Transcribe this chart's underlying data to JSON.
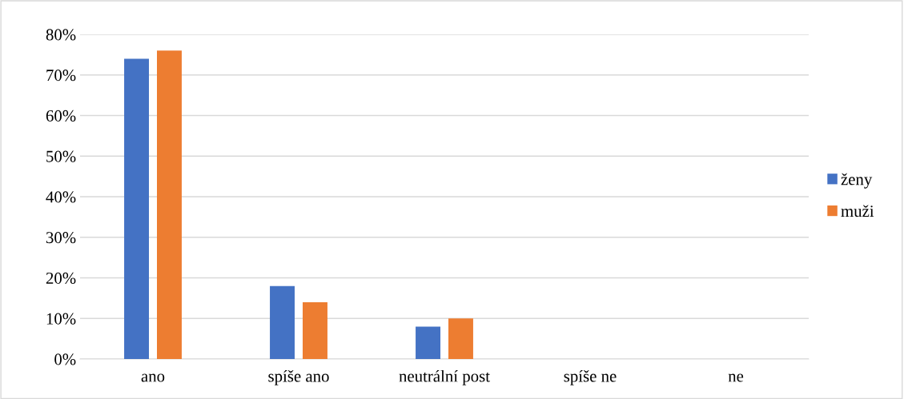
{
  "chart_data": {
    "type": "bar",
    "categories": [
      "ano",
      "spíše ano",
      "neutrální post",
      "spíše ne",
      "ne"
    ],
    "series": [
      {
        "name": "ženy",
        "color": "#4472c4",
        "values": [
          74,
          18,
          8,
          0,
          0
        ]
      },
      {
        "name": "muži",
        "color": "#ed7d31",
        "values": [
          76,
          14,
          10,
          0,
          0
        ]
      }
    ],
    "ylim": [
      0,
      80
    ],
    "yticks": [
      {
        "value": 0,
        "label": "0%"
      },
      {
        "value": 10,
        "label": "10%"
      },
      {
        "value": 20,
        "label": "20%"
      },
      {
        "value": 30,
        "label": "30%"
      },
      {
        "value": 40,
        "label": "40%"
      },
      {
        "value": 50,
        "label": "50%"
      },
      {
        "value": 60,
        "label": "60%"
      },
      {
        "value": 70,
        "label": "70%"
      },
      {
        "value": 80,
        "label": "80%"
      }
    ],
    "grid": "y",
    "legend": "right"
  }
}
